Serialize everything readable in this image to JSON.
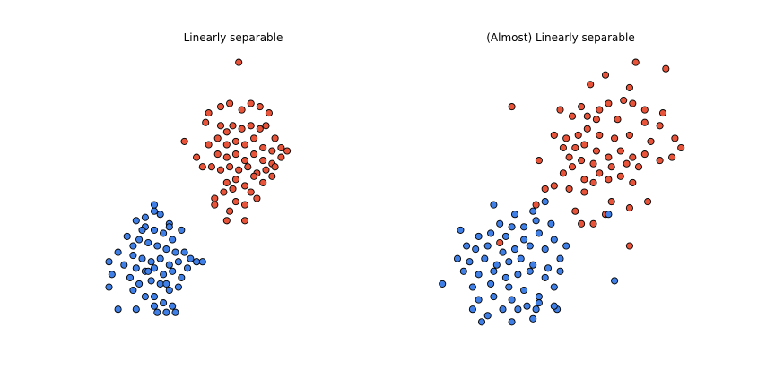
{
  "chart_data": [
    {
      "type": "scatter",
      "title": "Linearly separable",
      "xlabel": "",
      "ylabel": "",
      "axes_visible": false,
      "grid": false,
      "xlim": [
        -4.5,
        4.5
      ],
      "ylim": [
        -4.5,
        4.5
      ],
      "colors": {
        "red": "#e8543a",
        "blue": "#3f7fe6"
      },
      "series": [
        {
          "color": "red",
          "points": [
            [
              0.2,
              4.2
            ],
            [
              -0.9,
              2.3
            ],
            [
              -0.8,
              2.6
            ],
            [
              -0.4,
              2.8
            ],
            [
              -0.1,
              2.9
            ],
            [
              0.3,
              2.7
            ],
            [
              0.6,
              2.9
            ],
            [
              0.9,
              2.8
            ],
            [
              1.2,
              2.6
            ],
            [
              -0.4,
              2.2
            ],
            [
              -0.2,
              2.0
            ],
            [
              0.0,
              2.2
            ],
            [
              0.3,
              2.1
            ],
            [
              0.6,
              2.2
            ],
            [
              0.9,
              2.1
            ],
            [
              1.1,
              2.2
            ],
            [
              1.4,
              1.8
            ],
            [
              -0.8,
              1.6
            ],
            [
              -0.5,
              1.8
            ],
            [
              -0.2,
              1.6
            ],
            [
              0.1,
              1.7
            ],
            [
              0.4,
              1.6
            ],
            [
              0.7,
              1.8
            ],
            [
              1.0,
              1.5
            ],
            [
              1.3,
              1.4
            ],
            [
              1.6,
              1.5
            ],
            [
              1.8,
              1.4
            ],
            [
              -0.5,
              1.3
            ],
            [
              -0.2,
              1.2
            ],
            [
              0.1,
              1.3
            ],
            [
              0.4,
              1.1
            ],
            [
              0.7,
              1.3
            ],
            [
              1.0,
              1.1
            ],
            [
              1.3,
              1.0
            ],
            [
              -1.2,
              1.2
            ],
            [
              -1.0,
              0.9
            ],
            [
              -0.7,
              0.9
            ],
            [
              -0.4,
              0.8
            ],
            [
              -0.1,
              0.9
            ],
            [
              0.2,
              0.8
            ],
            [
              0.5,
              0.9
            ],
            [
              0.8,
              0.7
            ],
            [
              1.1,
              0.8
            ],
            [
              1.4,
              0.9
            ],
            [
              1.6,
              1.2
            ],
            [
              -0.2,
              0.4
            ],
            [
              0.1,
              0.5
            ],
            [
              0.4,
              0.3
            ],
            [
              0.7,
              0.6
            ],
            [
              1.0,
              0.4
            ],
            [
              1.3,
              0.6
            ],
            [
              -0.3,
              0.1
            ],
            [
              0.0,
              0.2
            ],
            [
              0.6,
              0.1
            ],
            [
              -0.6,
              -0.3
            ],
            [
              -0.6,
              -0.1
            ],
            [
              0.1,
              -0.2
            ],
            [
              0.4,
              -0.3
            ],
            [
              0.8,
              -0.1
            ],
            [
              -0.1,
              -0.5
            ],
            [
              -0.2,
              -0.8
            ],
            [
              0.4,
              -0.8
            ],
            [
              -1.6,
              1.7
            ]
          ]
        },
        {
          "color": "blue",
          "points": [
            [
              -2.6,
              -0.5
            ],
            [
              -2.4,
              -0.6
            ],
            [
              -2.1,
              -0.9
            ],
            [
              -3.2,
              -0.8
            ],
            [
              -2.9,
              -1.0
            ],
            [
              -2.6,
              -1.1
            ],
            [
              -2.3,
              -1.2
            ],
            [
              -2.0,
              -1.4
            ],
            [
              -3.5,
              -1.3
            ],
            [
              -3.1,
              -1.4
            ],
            [
              -2.8,
              -1.5
            ],
            [
              -2.5,
              -1.6
            ],
            [
              -2.2,
              -1.7
            ],
            [
              -1.9,
              -1.8
            ],
            [
              -1.6,
              -1.8
            ],
            [
              -3.8,
              -1.8
            ],
            [
              -3.3,
              -1.9
            ],
            [
              -3.0,
              -2.0
            ],
            [
              -2.7,
              -2.1
            ],
            [
              -2.4,
              -2.0
            ],
            [
              -2.1,
              -2.2
            ],
            [
              -1.8,
              -2.1
            ],
            [
              -1.4,
              -2.0
            ],
            [
              -1.2,
              -2.1
            ],
            [
              -1.0,
              -2.1
            ],
            [
              -3.6,
              -2.2
            ],
            [
              -3.2,
              -2.3
            ],
            [
              -2.9,
              -2.4
            ],
            [
              -2.6,
              -2.3
            ],
            [
              -2.3,
              -2.5
            ],
            [
              -2.0,
              -2.4
            ],
            [
              -1.7,
              -2.6
            ],
            [
              -1.5,
              -2.3
            ],
            [
              -4.1,
              -2.1
            ],
            [
              -4.0,
              -2.5
            ],
            [
              -3.4,
              -2.6
            ],
            [
              -3.1,
              -2.8
            ],
            [
              -2.7,
              -2.7
            ],
            [
              -2.4,
              -2.8
            ],
            [
              -2.1,
              -3.0
            ],
            [
              -1.8,
              -2.9
            ],
            [
              -4.1,
              -2.9
            ],
            [
              -3.3,
              -3.0
            ],
            [
              -2.9,
              -3.2
            ],
            [
              -2.3,
              -3.4
            ],
            [
              -2.0,
              -3.5
            ],
            [
              -2.6,
              -3.2
            ],
            [
              -2.6,
              -3.5
            ],
            [
              -3.8,
              -3.6
            ],
            [
              -3.2,
              -3.6
            ],
            [
              -2.5,
              -3.7
            ],
            [
              -2.2,
              -3.7
            ],
            [
              -1.9,
              -3.7
            ],
            [
              -2.6,
              -0.3
            ],
            [
              -2.9,
              -0.7
            ],
            [
              -3.0,
              -1.1
            ],
            [
              -2.1,
              -1.0
            ],
            [
              -3.3,
              -1.6
            ],
            [
              -1.7,
              -1.1
            ],
            [
              -2.8,
              -2.4
            ],
            [
              -2.2,
              -2.8
            ]
          ]
        }
      ]
    },
    {
      "type": "scatter",
      "title": "(Almost) Linearly separable",
      "xlabel": "",
      "ylabel": "",
      "axes_visible": false,
      "grid": false,
      "xlim": [
        -4.5,
        4.5
      ],
      "ylim": [
        -4.5,
        4.5
      ],
      "colors": {
        "red": "#e8543a",
        "blue": "#3f7fe6"
      },
      "series": [
        {
          "color": "red",
          "points": [
            [
              2.5,
              4.2
            ],
            [
              3.5,
              4.0
            ],
            [
              1.5,
              3.8
            ],
            [
              1.0,
              3.5
            ],
            [
              2.3,
              3.4
            ],
            [
              2.1,
              3.0
            ],
            [
              2.4,
              2.9
            ],
            [
              -1.6,
              2.8
            ],
            [
              0.0,
              2.7
            ],
            [
              0.7,
              2.8
            ],
            [
              1.3,
              2.7
            ],
            [
              1.6,
              2.9
            ],
            [
              2.8,
              2.7
            ],
            [
              3.4,
              2.6
            ],
            [
              0.4,
              2.5
            ],
            [
              0.9,
              2.5
            ],
            [
              1.2,
              2.4
            ],
            [
              1.9,
              2.4
            ],
            [
              2.8,
              2.3
            ],
            [
              3.3,
              2.2
            ],
            [
              -0.2,
              1.9
            ],
            [
              0.2,
              1.8
            ],
            [
              0.6,
              1.9
            ],
            [
              0.9,
              2.1
            ],
            [
              1.3,
              1.9
            ],
            [
              1.8,
              1.8
            ],
            [
              2.3,
              1.9
            ],
            [
              3.0,
              1.7
            ],
            [
              3.8,
              1.8
            ],
            [
              4.0,
              1.5
            ],
            [
              0.1,
              1.5
            ],
            [
              0.5,
              1.5
            ],
            [
              0.8,
              1.6
            ],
            [
              1.2,
              1.4
            ],
            [
              1.6,
              1.2
            ],
            [
              2.0,
              1.4
            ],
            [
              2.4,
              1.2
            ],
            [
              2.8,
              1.3
            ],
            [
              3.3,
              1.1
            ],
            [
              3.7,
              1.2
            ],
            [
              -0.7,
              1.1
            ],
            [
              0.3,
              1.2
            ],
            [
              0.7,
              1.1
            ],
            [
              1.1,
              1.0
            ],
            [
              1.7,
              0.9
            ],
            [
              2.2,
              1.0
            ],
            [
              2.6,
              0.9
            ],
            [
              0.1,
              0.7
            ],
            [
              0.4,
              0.9
            ],
            [
              0.8,
              0.5
            ],
            [
              1.3,
              0.7
            ],
            [
              1.6,
              0.5
            ],
            [
              2.0,
              0.6
            ],
            [
              2.4,
              0.4
            ],
            [
              -0.5,
              0.2
            ],
            [
              -0.2,
              0.3
            ],
            [
              0.3,
              0.2
            ],
            [
              0.8,
              0.1
            ],
            [
              1.1,
              0.4
            ],
            [
              -0.8,
              -0.3
            ],
            [
              0.5,
              -0.5
            ],
            [
              1.7,
              -0.2
            ],
            [
              2.3,
              -0.4
            ],
            [
              2.9,
              -0.2
            ],
            [
              0.7,
              -0.9
            ],
            [
              1.1,
              -0.9
            ],
            [
              1.5,
              -0.6
            ],
            [
              -2.0,
              -1.5
            ],
            [
              2.3,
              -1.6
            ]
          ]
        },
        {
          "color": "blue",
          "points": [
            [
              -2.2,
              -0.3
            ],
            [
              -0.5,
              -0.2
            ],
            [
              -1.5,
              -0.6
            ],
            [
              -0.9,
              -0.5
            ],
            [
              -2.0,
              -0.9
            ],
            [
              -1.6,
              -1.0
            ],
            [
              -1.2,
              -1.0
            ],
            [
              -0.8,
              -0.8
            ],
            [
              -0.3,
              -0.9
            ],
            [
              -3.3,
              -1.1
            ],
            [
              -2.7,
              -1.3
            ],
            [
              -2.3,
              -1.2
            ],
            [
              -1.8,
              -1.3
            ],
            [
              -1.2,
              -1.4
            ],
            [
              -0.7,
              -1.2
            ],
            [
              -0.2,
              -1.4
            ],
            [
              -3.1,
              -1.6
            ],
            [
              -2.8,
              -1.7
            ],
            [
              -2.4,
              -1.6
            ],
            [
              -1.9,
              -1.8
            ],
            [
              -1.5,
              -1.7
            ],
            [
              -1.0,
              -1.6
            ],
            [
              -0.5,
              -1.7
            ],
            [
              0.2,
              -1.6
            ],
            [
              -3.4,
              -2.0
            ],
            [
              -3.0,
              -2.1
            ],
            [
              -2.5,
              -2.0
            ],
            [
              -2.1,
              -2.2
            ],
            [
              -1.7,
              -2.1
            ],
            [
              -1.3,
              -2.0
            ],
            [
              -0.9,
              -2.2
            ],
            [
              -0.4,
              -2.3
            ],
            [
              0.0,
              -2.0
            ],
            [
              -3.2,
              -2.4
            ],
            [
              -2.7,
              -2.5
            ],
            [
              -2.2,
              -2.4
            ],
            [
              -1.8,
              -2.6
            ],
            [
              -1.4,
              -2.5
            ],
            [
              -1.0,
              -2.4
            ],
            [
              -0.5,
              -2.6
            ],
            [
              0.0,
              -2.4
            ],
            [
              -3.9,
              -2.8
            ],
            [
              -2.9,
              -2.9
            ],
            [
              -2.3,
              -2.8
            ],
            [
              -1.7,
              -2.9
            ],
            [
              -1.2,
              -3.0
            ],
            [
              -0.7,
              -3.2
            ],
            [
              -0.2,
              -2.9
            ],
            [
              -2.7,
              -3.3
            ],
            [
              -2.2,
              -3.2
            ],
            [
              -1.6,
              -3.3
            ],
            [
              -1.1,
              -3.5
            ],
            [
              -0.7,
              -3.4
            ],
            [
              -0.1,
              -3.6
            ],
            [
              -0.2,
              -3.5
            ],
            [
              -2.9,
              -3.6
            ],
            [
              -2.4,
              -3.8
            ],
            [
              -1.9,
              -3.6
            ],
            [
              -1.4,
              -3.6
            ],
            [
              -0.8,
              -3.6
            ],
            [
              -2.6,
              -4.0
            ],
            [
              -1.6,
              -4.0
            ],
            [
              -0.9,
              -3.9
            ],
            [
              1.6,
              -0.6
            ],
            [
              1.8,
              -2.7
            ]
          ]
        }
      ]
    }
  ]
}
